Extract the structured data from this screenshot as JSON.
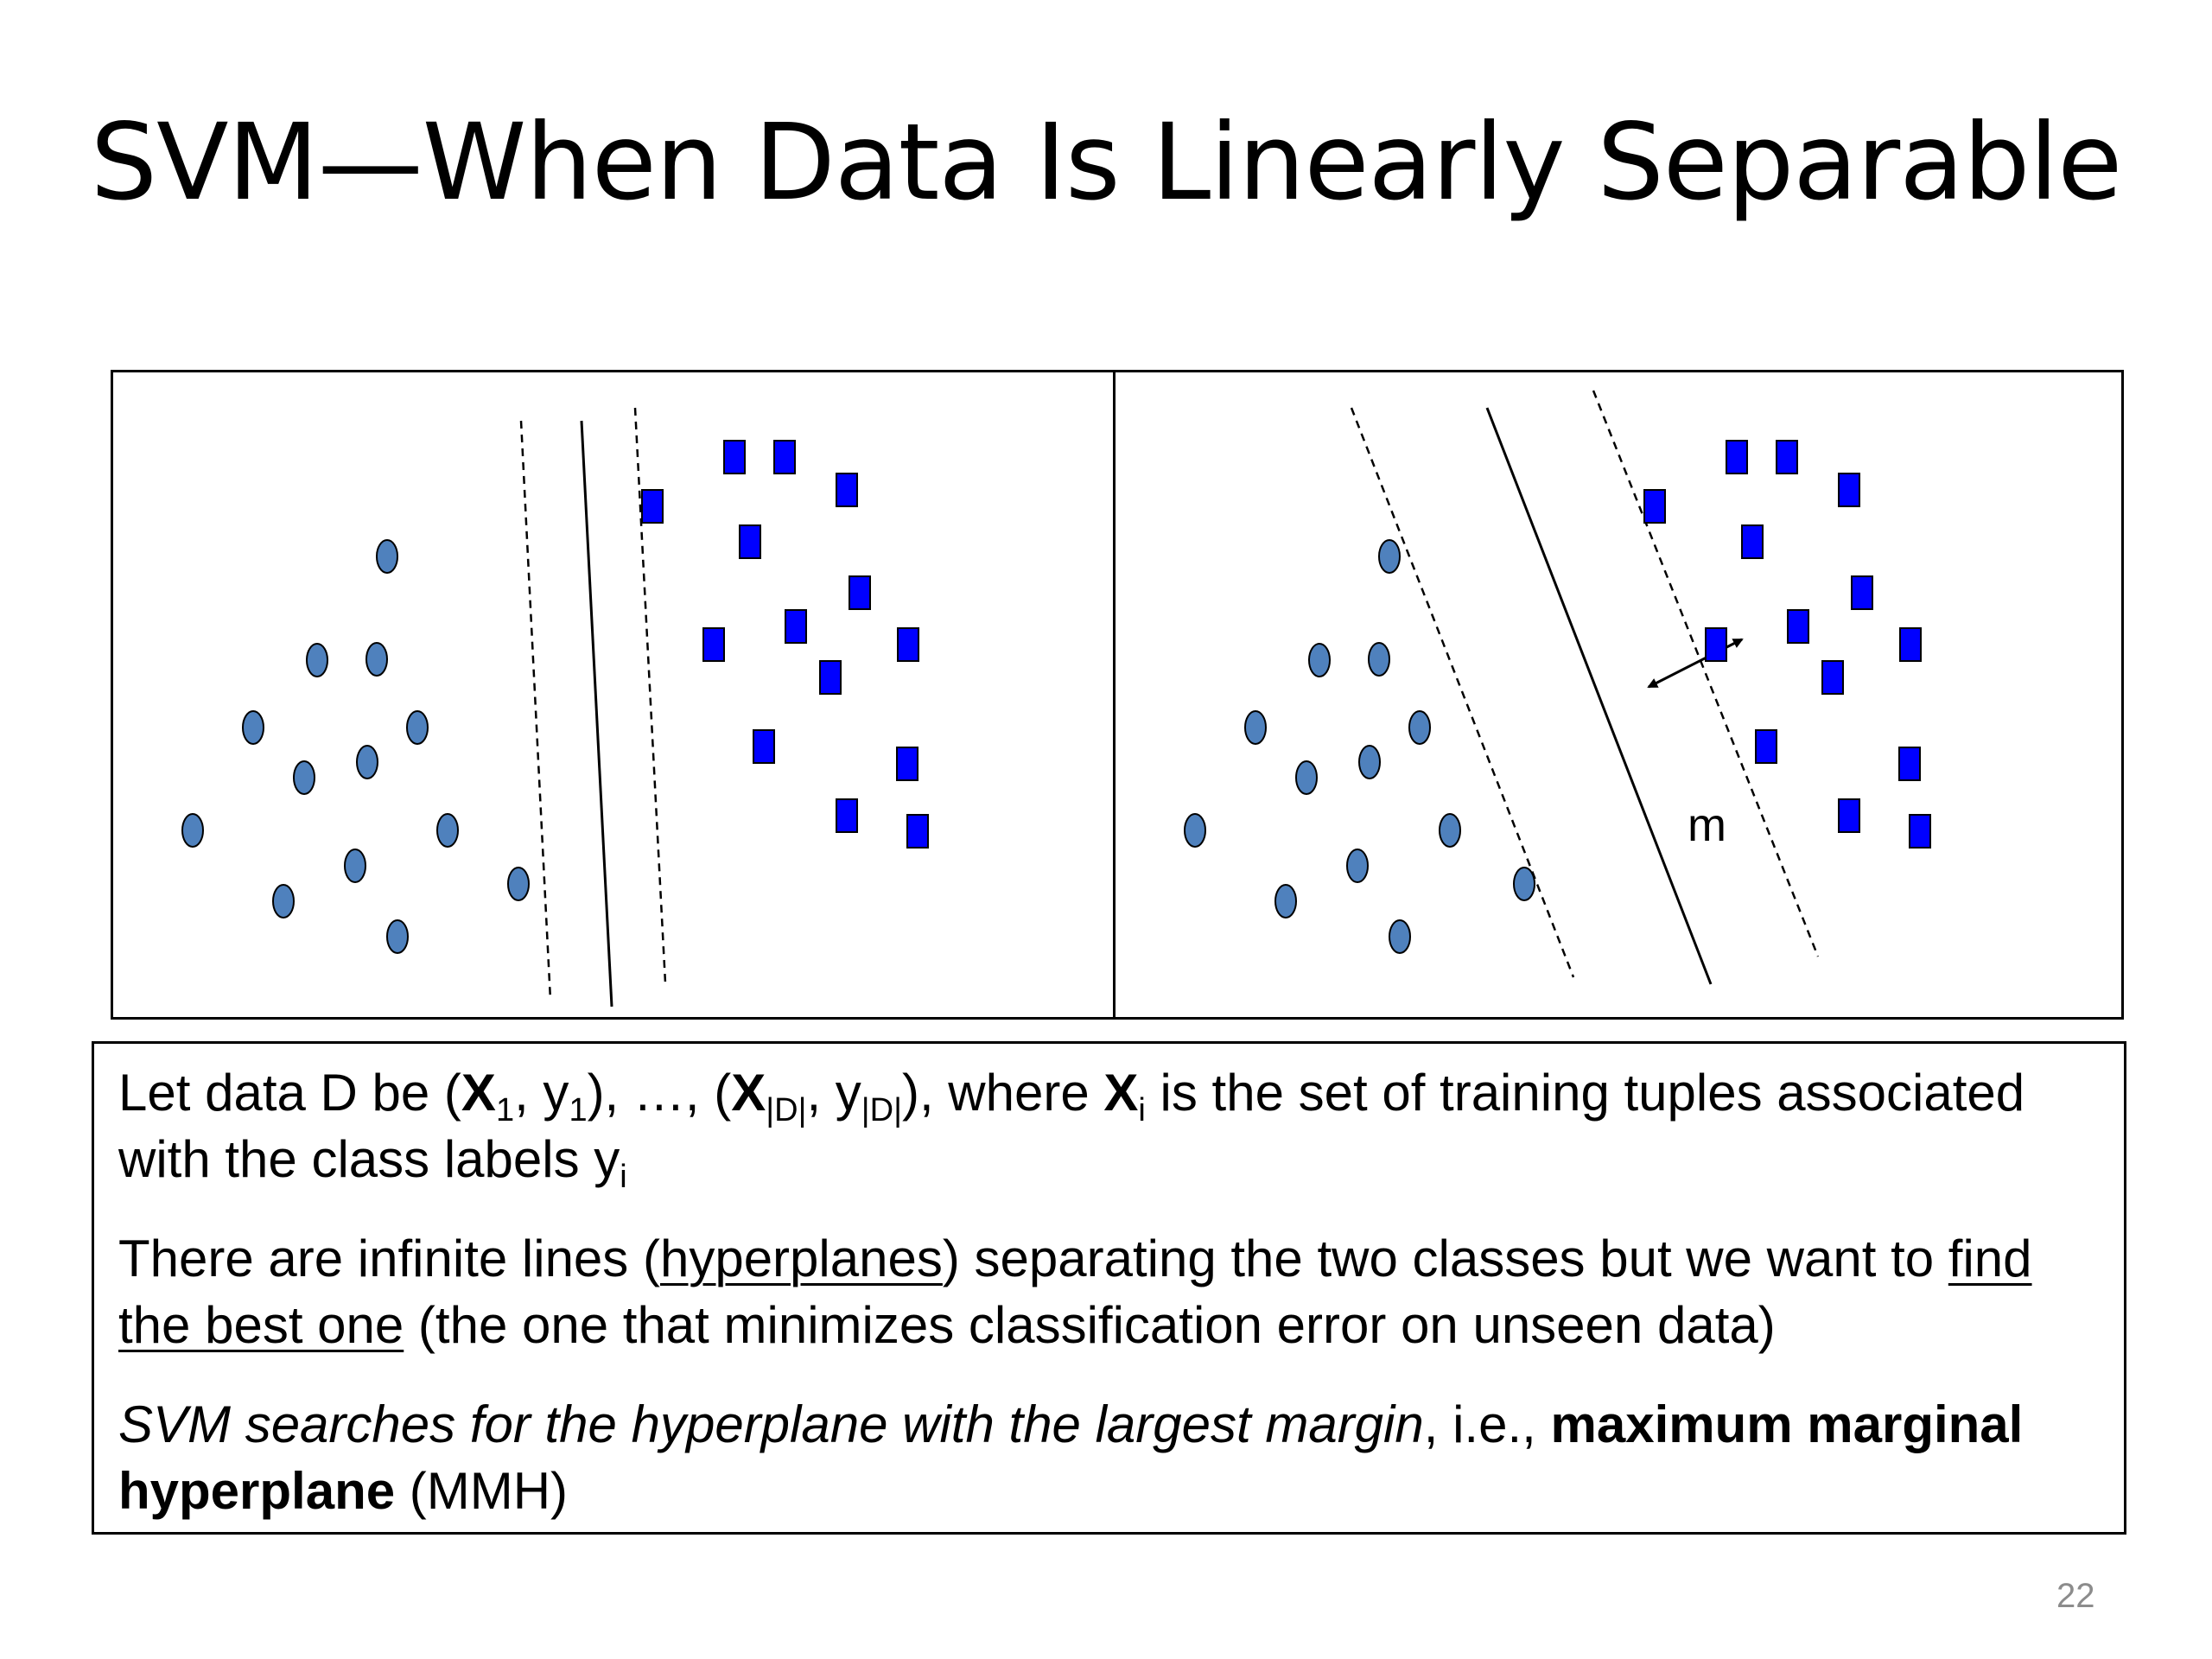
{
  "slide": {
    "title": "SVM—When Data Is Linearly Separable",
    "page_number": "22"
  },
  "figure": {
    "margin_label": "m",
    "colors": {
      "circle_fill": "#4f81bd",
      "square_fill": "#0000ff",
      "outline": "#000000"
    }
  },
  "text": {
    "p1_a": "Let data D be (",
    "x1_sym": "X",
    "x1_sub": "1",
    "p1_b": ", y",
    "y1_sub": "1",
    "p1_c": "), …, (",
    "xd_sym": "X",
    "xd_sub": "|D|",
    "p1_d": ", y",
    "yd_sub": "|D|",
    "p1_e": "), where ",
    "xi_sym": "X",
    "xi_sub": "i",
    "p1_f": " is the set of training tuples associated with the class labels y",
    "yi_sub": "i",
    "p2_a": "There are infinite lines (",
    "p2_link": "hyperplanes",
    "p2_b": ") separating the two classes but we want to ",
    "p2_u": "find the best one",
    "p2_c": " (the one that minimizes classification error on unseen data)",
    "p3_italic": "SVM searches for the hyperplane with the largest margin",
    "p3_mid": ", i.e., ",
    "p3_bold": "maximum marginal hyperplane",
    "p3_end": " (MMH)"
  }
}
